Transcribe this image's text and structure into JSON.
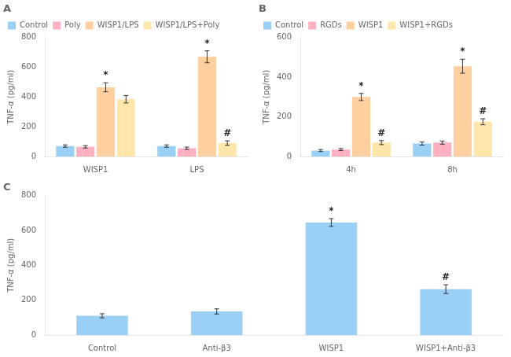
{
  "chart_data": [
    {
      "type": "bar",
      "title": "A",
      "categories": [
        "WISP1",
        "LPS"
      ],
      "series": [
        {
          "name": "Control",
          "values": [
            70,
            70
          ],
          "errors": [
            8,
            8
          ]
        },
        {
          "name": "Poly",
          "values": [
            65,
            55
          ],
          "errors": [
            8,
            8
          ]
        },
        {
          "name": "WISP1/LPS",
          "values": [
            465,
            670
          ],
          "errors": [
            30,
            40
          ]
        },
        {
          "name": "WISP1/LPS+Poly",
          "values": [
            385,
            90
          ],
          "errors": [
            25,
            15
          ]
        }
      ],
      "annotations": [
        {
          "text": "*",
          "category": "WISP1",
          "series": "WISP1/LPS"
        },
        {
          "text": "*",
          "category": "LPS",
          "series": "WISP1/LPS"
        },
        {
          "text": "#",
          "category": "LPS",
          "series": "WISP1/LPS+Poly"
        }
      ],
      "ylabel": "TNF-α (pg/ml)",
      "ylim": [
        0,
        800
      ],
      "yticks": [
        0,
        200,
        400,
        600,
        800
      ],
      "grid": false,
      "legend": "upper left"
    },
    {
      "type": "bar",
      "title": "B",
      "categories": [
        "4h",
        "8h"
      ],
      "series": [
        {
          "name": "Control",
          "values": [
            30,
            65
          ],
          "errors": [
            5,
            8
          ]
        },
        {
          "name": "RGDs",
          "values": [
            35,
            70
          ],
          "errors": [
            5,
            8
          ]
        },
        {
          "name": "WISP1",
          "values": [
            300,
            455
          ],
          "errors": [
            18,
            35
          ]
        },
        {
          "name": "WISP1+RGDs",
          "values": [
            70,
            175
          ],
          "errors": [
            10,
            15
          ]
        }
      ],
      "annotations": [
        {
          "text": "*",
          "category": "4h",
          "series": "WISP1"
        },
        {
          "text": "*",
          "category": "8h",
          "series": "WISP1"
        },
        {
          "text": "#",
          "category": "4h",
          "series": "WISP1+RGDs"
        },
        {
          "text": "#",
          "category": "8h",
          "series": "WISP1+RGDs"
        }
      ],
      "ylabel": "TNF-α (pg/ml)",
      "ylim": [
        0,
        600
      ],
      "yticks": [
        0,
        200,
        400,
        600
      ],
      "grid": false,
      "legend": "upper left"
    },
    {
      "type": "bar",
      "title": "C",
      "categories": [
        "Control",
        "Anti-β3",
        "WISP1",
        "WISP1+Anti-β3"
      ],
      "values": [
        110,
        135,
        645,
        263
      ],
      "errors": [
        12,
        15,
        22,
        25
      ],
      "annotations": [
        {
          "text": "*",
          "category": "WISP1"
        },
        {
          "text": "#",
          "category": "WISP1+Anti-β3"
        }
      ],
      "ylabel": "TNF-α (pg/ml)",
      "ylim": [
        0,
        800
      ],
      "yticks": [
        0,
        200,
        400,
        600,
        800
      ],
      "grid": false
    }
  ]
}
